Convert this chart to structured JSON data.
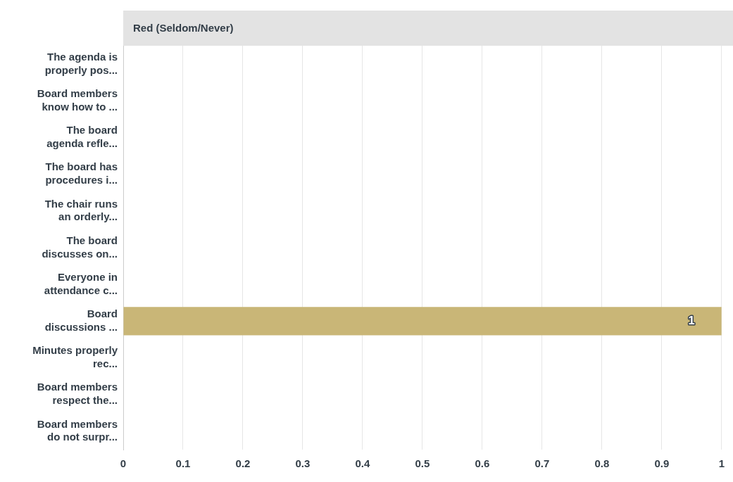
{
  "chart_data": {
    "type": "bar",
    "orientation": "horizontal",
    "title": "Red (Seldom/Never)",
    "categories": [
      "The agenda is properly pos...",
      "Board members know how to ...",
      "The board agenda refle...",
      "The board has procedures i...",
      "The chair runs an orderly...",
      "The board discusses on...",
      "Everyone in attendance c...",
      "Board discussions ...",
      "Minutes properly rec...",
      "Board members respect the...",
      "Board members do not surpr..."
    ],
    "values": [
      0,
      0,
      0,
      0,
      0,
      0,
      0,
      1,
      0,
      0,
      0
    ],
    "color": "#c9b677",
    "xlim": [
      0,
      1
    ],
    "xticks": [
      0,
      0.1,
      0.2,
      0.3,
      0.4,
      0.5,
      0.6,
      0.7,
      0.8,
      0.9,
      1
    ],
    "value_labels": [
      null,
      null,
      null,
      null,
      null,
      null,
      null,
      "1",
      null,
      null,
      null
    ],
    "grid": "x",
    "legend": false
  }
}
